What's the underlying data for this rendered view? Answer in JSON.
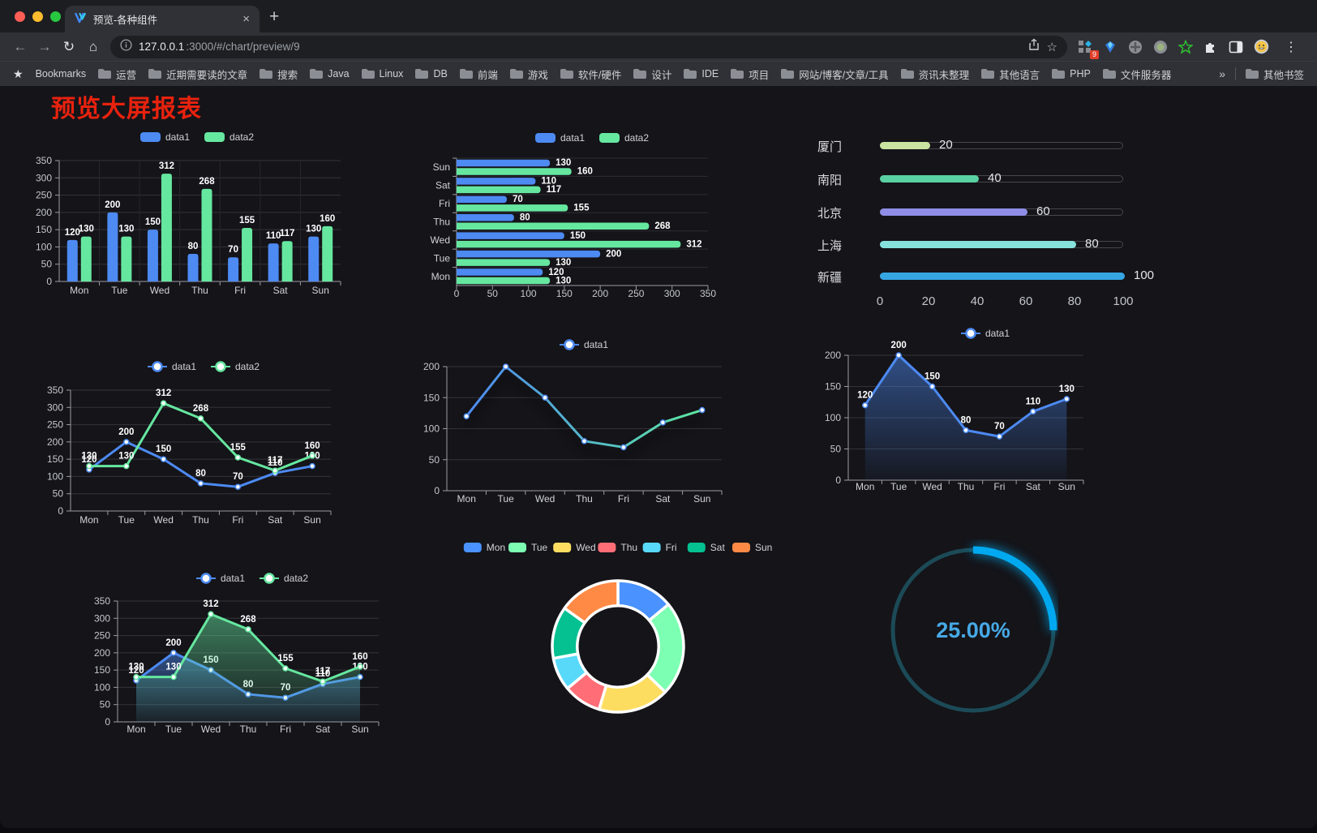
{
  "browser": {
    "tab_title": "预览-各种组件",
    "tab_close": "×",
    "new_tab": "+",
    "nav": {
      "back": "←",
      "forward": "→",
      "reload": "↻",
      "home": "⌂"
    },
    "url": {
      "host": "127.0.0.1",
      "path": ":3000/#/chart/preview/9"
    },
    "star": "☆",
    "extension_badge": "9",
    "menu": "⋮",
    "bookmarks_bar": {
      "star": "★",
      "label": "Bookmarks",
      "folders": [
        "运营",
        "近期需要读的文章",
        "搜索",
        "Java",
        "Linux",
        "DB",
        "前端",
        "游戏",
        "软件/硬件",
        "设计",
        "IDE",
        "项目",
        "网站/博客/文章/工具",
        "资讯未整理",
        "其他语言",
        "PHP",
        "文件服务器"
      ],
      "overflow": "»",
      "other": "其他书签"
    }
  },
  "page": {
    "title": "预览大屏报表",
    "title_color": "#e8220e"
  },
  "chart_data": [
    {
      "id": "bar-vertical",
      "type": "bar",
      "title": "",
      "categories": [
        "Mon",
        "Tue",
        "Wed",
        "Thu",
        "Fri",
        "Sat",
        "Sun"
      ],
      "series": [
        {
          "name": "data1",
          "color": "#4d8af2",
          "values": [
            120,
            200,
            150,
            80,
            70,
            110,
            130
          ]
        },
        {
          "name": "data2",
          "color": "#66e7a0",
          "values": [
            130,
            130,
            312,
            268,
            155,
            117,
            160
          ]
        }
      ],
      "ylim": [
        0,
        350
      ],
      "yticks": [
        0,
        50,
        100,
        150,
        200,
        250,
        300,
        350
      ],
      "grid": true,
      "legend_position": "top",
      "value_labels": true
    },
    {
      "id": "bar-horizontal",
      "type": "bar",
      "orientation": "horizontal",
      "categories": [
        "Mon",
        "Tue",
        "Wed",
        "Thu",
        "Fri",
        "Sat",
        "Sun"
      ],
      "row_order_top_to_bottom": [
        "Sun",
        "Sat",
        "Fri",
        "Thu",
        "Wed",
        "Tue",
        "Mon"
      ],
      "series": [
        {
          "name": "data1",
          "color": "#4d8af2",
          "values": [
            120,
            200,
            150,
            80,
            70,
            110,
            130
          ]
        },
        {
          "name": "data2",
          "color": "#66e7a0",
          "values": [
            130,
            130,
            312,
            268,
            155,
            117,
            160
          ]
        }
      ],
      "xlim": [
        0,
        350
      ],
      "xticks": [
        0,
        50,
        100,
        150,
        200,
        250,
        300,
        350
      ],
      "grid": true,
      "legend_position": "top",
      "value_labels": true
    },
    {
      "id": "progress-bars",
      "type": "bar",
      "subtype": "progress",
      "max": 100,
      "xticks": [
        0,
        20,
        40,
        60,
        80,
        100
      ],
      "rows": [
        {
          "label": "厦门",
          "value": 20,
          "color": "#c9e3a0"
        },
        {
          "label": "南阳",
          "value": 40,
          "color": "#5ad1a2"
        },
        {
          "label": "北京",
          "value": 60,
          "color": "#8f8de6"
        },
        {
          "label": "上海",
          "value": 80,
          "color": "#86e3dc"
        },
        {
          "label": "新疆",
          "value": 100,
          "color": "#36a6e3"
        }
      ]
    },
    {
      "id": "line-two-series",
      "type": "line",
      "categories": [
        "Mon",
        "Tue",
        "Wed",
        "Thu",
        "Fri",
        "Sat",
        "Sun"
      ],
      "series": [
        {
          "name": "data1",
          "color": "#4d8af2",
          "values": [
            120,
            200,
            150,
            80,
            70,
            110,
            130
          ]
        },
        {
          "name": "data2",
          "color": "#66e7a0",
          "values": [
            130,
            130,
            312,
            268,
            155,
            117,
            160
          ]
        }
      ],
      "ylim": [
        0,
        350
      ],
      "yticks": [
        0,
        50,
        100,
        150,
        200,
        250,
        300,
        350
      ],
      "grid": true,
      "legend_position": "top",
      "value_labels": true
    },
    {
      "id": "line-gradient",
      "type": "line",
      "categories": [
        "Mon",
        "Tue",
        "Wed",
        "Thu",
        "Fri",
        "Sat",
        "Sun"
      ],
      "series": [
        {
          "name": "data1",
          "gradient": [
            "#4d8af2",
            "#5de6a0"
          ],
          "color": "#4d8af2",
          "values": [
            120,
            200,
            150,
            80,
            70,
            110,
            130
          ]
        }
      ],
      "ylim": [
        0,
        200
      ],
      "yticks": [
        0,
        50,
        100,
        150,
        200
      ],
      "grid": true,
      "legend_position": "top",
      "value_labels": false
    },
    {
      "id": "line-area",
      "type": "area",
      "categories": [
        "Mon",
        "Tue",
        "Wed",
        "Thu",
        "Fri",
        "Sat",
        "Sun"
      ],
      "series": [
        {
          "name": "data1",
          "color": "#4d8af2",
          "area": true,
          "values": [
            120,
            200,
            150,
            80,
            70,
            110,
            130
          ]
        }
      ],
      "ylim": [
        0,
        200
      ],
      "yticks": [
        0,
        50,
        100,
        150,
        200
      ],
      "grid": true,
      "legend_position": "top",
      "value_labels": true
    },
    {
      "id": "line-area-two",
      "type": "area",
      "categories": [
        "Mon",
        "Tue",
        "Wed",
        "Thu",
        "Fri",
        "Sat",
        "Sun"
      ],
      "series": [
        {
          "name": "data1",
          "color": "#4d8af2",
          "area": true,
          "values": [
            120,
            200,
            150,
            80,
            70,
            110,
            130
          ]
        },
        {
          "name": "data2",
          "color": "#66e7a0",
          "area": true,
          "values": [
            130,
            130,
            312,
            268,
            155,
            117,
            160
          ]
        }
      ],
      "ylim": [
        0,
        350
      ],
      "yticks": [
        0,
        50,
        100,
        150,
        200,
        250,
        300,
        350
      ],
      "grid": true,
      "legend_position": "top",
      "value_labels": true
    },
    {
      "id": "donut",
      "type": "pie",
      "categories": [
        "Mon",
        "Tue",
        "Wed",
        "Thu",
        "Fri",
        "Sat",
        "Sun"
      ],
      "values": [
        120,
        200,
        150,
        80,
        70,
        110,
        130
      ],
      "colors": [
        "#4992ff",
        "#7cffb2",
        "#fddd60",
        "#ff6e76",
        "#58d9f9",
        "#05c091",
        "#ff8a45"
      ],
      "inner_radius_ratio": 0.62,
      "legend_position": "top"
    },
    {
      "id": "gauge",
      "type": "gauge",
      "value": 25,
      "display": "25.00%",
      "arc_color": "#00a9ef",
      "track_color": "#1c4a57",
      "text_color": "#47a9e6"
    }
  ]
}
